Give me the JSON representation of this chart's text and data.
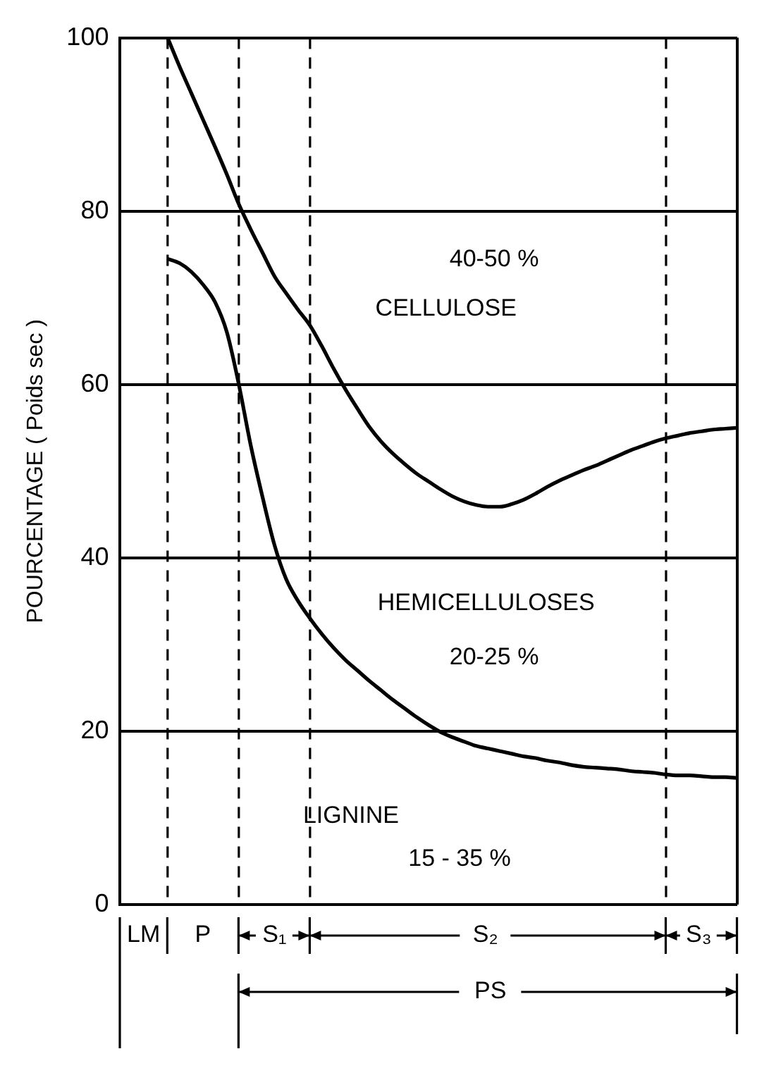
{
  "chart_data": {
    "type": "line",
    "ylabel": "POURCENTAGE ( Poids sec )",
    "categories": [
      null,
      null,
      null,
      null,
      null,
      null,
      null,
      null,
      null,
      null,
      null,
      null,
      null,
      null,
      null,
      null,
      null,
      null,
      null,
      null,
      null,
      null,
      null,
      null,
      null,
      null,
      null,
      null,
      null,
      null,
      null,
      null,
      null,
      null,
      null,
      null,
      null,
      null,
      null,
      null,
      null,
      null,
      null,
      null,
      null,
      null,
      null,
      null,
      null,
      null,
      null,
      null,
      null
    ],
    "ylim": [
      0,
      100
    ],
    "yticks": [
      0,
      20,
      40,
      60,
      80,
      100
    ],
    "tick_labels": "y",
    "grid": true,
    "legend": false,
    "marker": "none",
    "line_style": "solid",
    "series": [
      {
        "color": "#000000",
        "values": [
          null,
          null,
          null,
          null,
          100,
          96.7,
          93.6,
          90.5,
          87.4,
          84.2,
          80.8,
          77.9,
          75.2,
          72.5,
          70.5,
          68.6,
          66.8,
          64.4,
          61.8,
          59.4,
          57.2,
          55.1,
          53.4,
          52,
          50.8,
          49.7,
          48.8,
          47.9,
          47.1,
          46.5,
          46.1,
          45.9,
          45.9,
          46.2,
          46.7,
          47.4,
          48.2,
          48.9,
          49.5,
          50.1,
          50.6,
          51.2,
          51.8,
          52.4,
          52.9,
          53.4,
          53.8,
          54.1,
          54.4,
          54.6,
          54.8,
          54.9,
          55
        ]
      },
      {
        "color": "#000000",
        "values": [
          null,
          null,
          null,
          null,
          74.5,
          74,
          73,
          71.5,
          69.5,
          66,
          60,
          53,
          47,
          41.5,
          37.5,
          35,
          33,
          31.2,
          29.6,
          28.2,
          27,
          25.8,
          24.7,
          23.6,
          22.6,
          21.6,
          20.7,
          19.9,
          19.3,
          18.8,
          18.3,
          18,
          17.7,
          17.4,
          17.1,
          16.9,
          16.6,
          16.4,
          16.1,
          15.9,
          15.8,
          15.7,
          15.6,
          15.4,
          15.3,
          15.2,
          15,
          14.9,
          14.9,
          14.8,
          14.7,
          14.7,
          14.6
        ]
      }
    ],
    "annotations": [
      "40-50 %",
      "CELLULOSE",
      "HEMICELLULOSES",
      "20-25 %",
      "LIGNINE",
      "15 - 35 %",
      "LM",
      "P",
      "S₁",
      "S₂",
      "S₃",
      "PS"
    ]
  }
}
